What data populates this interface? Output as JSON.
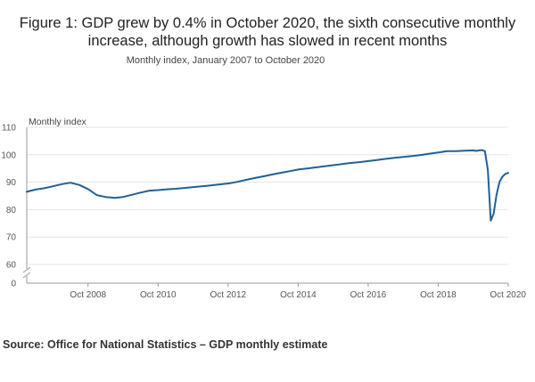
{
  "chart_data": {
    "type": "line",
    "title": "Figure 1: GDP grew by 0.4% in October 2020, the sixth consecutive monthly increase, although growth has slowed in recent months",
    "subtitle": "Monthly index, January 2007 to October 2020",
    "ylabel": "Monthly index",
    "xlabel": "",
    "ylim": [
      60,
      110
    ],
    "y_break_label": "0",
    "y_ticks": [
      "110",
      "100",
      "90",
      "80",
      "70",
      "60"
    ],
    "x_ticks": [
      "Oct 2008",
      "Oct 2010",
      "Oct 2012",
      "Oct 2014",
      "Oct 2016",
      "Oct 2018",
      "Oct 2020"
    ],
    "line_color": "#206095",
    "grid": true,
    "series": [
      {
        "name": "",
        "points": [
          [
            "Jan 2007",
            86.5
          ],
          [
            "Apr 2007",
            87.3
          ],
          [
            "Jul 2007",
            87.8
          ],
          [
            "Oct 2007",
            88.5
          ],
          [
            "Jan 2008",
            89.3
          ],
          [
            "Apr 2008",
            89.8
          ],
          [
            "Jul 2008",
            89.0
          ],
          [
            "Oct 2008",
            87.5
          ],
          [
            "Jan 2009",
            85.3
          ],
          [
            "Apr 2009",
            84.6
          ],
          [
            "Jul 2009",
            84.3
          ],
          [
            "Oct 2009",
            84.6
          ],
          [
            "Jan 2010",
            85.4
          ],
          [
            "Apr 2010",
            86.2
          ],
          [
            "Jul 2010",
            86.9
          ],
          [
            "Oct 2010",
            87.1
          ],
          [
            "Jan 2011",
            87.4
          ],
          [
            "Apr 2011",
            87.6
          ],
          [
            "Jul 2011",
            87.9
          ],
          [
            "Oct 2011",
            88.2
          ],
          [
            "Jan 2012",
            88.5
          ],
          [
            "Apr 2012",
            88.8
          ],
          [
            "Jul 2012",
            89.2
          ],
          [
            "Oct 2012",
            89.5
          ],
          [
            "Jan 2013",
            90.1
          ],
          [
            "Apr 2013",
            90.8
          ],
          [
            "Jul 2013",
            91.5
          ],
          [
            "Oct 2013",
            92.1
          ],
          [
            "Jan 2014",
            92.8
          ],
          [
            "Apr 2014",
            93.4
          ],
          [
            "Jul 2014",
            94.0
          ],
          [
            "Oct 2014",
            94.6
          ],
          [
            "Jan 2015",
            95.0
          ],
          [
            "Apr 2015",
            95.4
          ],
          [
            "Jul 2015",
            95.8
          ],
          [
            "Oct 2015",
            96.2
          ],
          [
            "Jan 2016",
            96.6
          ],
          [
            "Apr 2016",
            97.0
          ],
          [
            "Jul 2016",
            97.3
          ],
          [
            "Oct 2016",
            97.7
          ],
          [
            "Jan 2017",
            98.1
          ],
          [
            "Apr 2017",
            98.5
          ],
          [
            "Jul 2017",
            98.9
          ],
          [
            "Oct 2017",
            99.2
          ],
          [
            "Jan 2018",
            99.5
          ],
          [
            "Apr 2018",
            99.9
          ],
          [
            "Jul 2018",
            100.4
          ],
          [
            "Oct 2018",
            100.8
          ],
          [
            "Jan 2019",
            101.3
          ],
          [
            "Apr 2019",
            101.3
          ],
          [
            "Jul 2019",
            101.5
          ],
          [
            "Oct 2019",
            101.6
          ],
          [
            "Nov 2019",
            101.4
          ],
          [
            "Dec 2019",
            101.6
          ],
          [
            "Jan 2020",
            101.7
          ],
          [
            "Feb 2020",
            101.3
          ],
          [
            "Mar 2020",
            94.5
          ],
          [
            "Apr 2020",
            76.0
          ],
          [
            "May 2020",
            78.5
          ],
          [
            "Jun 2020",
            85.5
          ],
          [
            "Jul 2020",
            90.1
          ],
          [
            "Aug 2020",
            92.0
          ],
          [
            "Sep 2020",
            93.0
          ],
          [
            "Oct 2020",
            93.4
          ]
        ]
      }
    ]
  },
  "source": "Source: Office for National Statistics – GDP monthly estimate"
}
